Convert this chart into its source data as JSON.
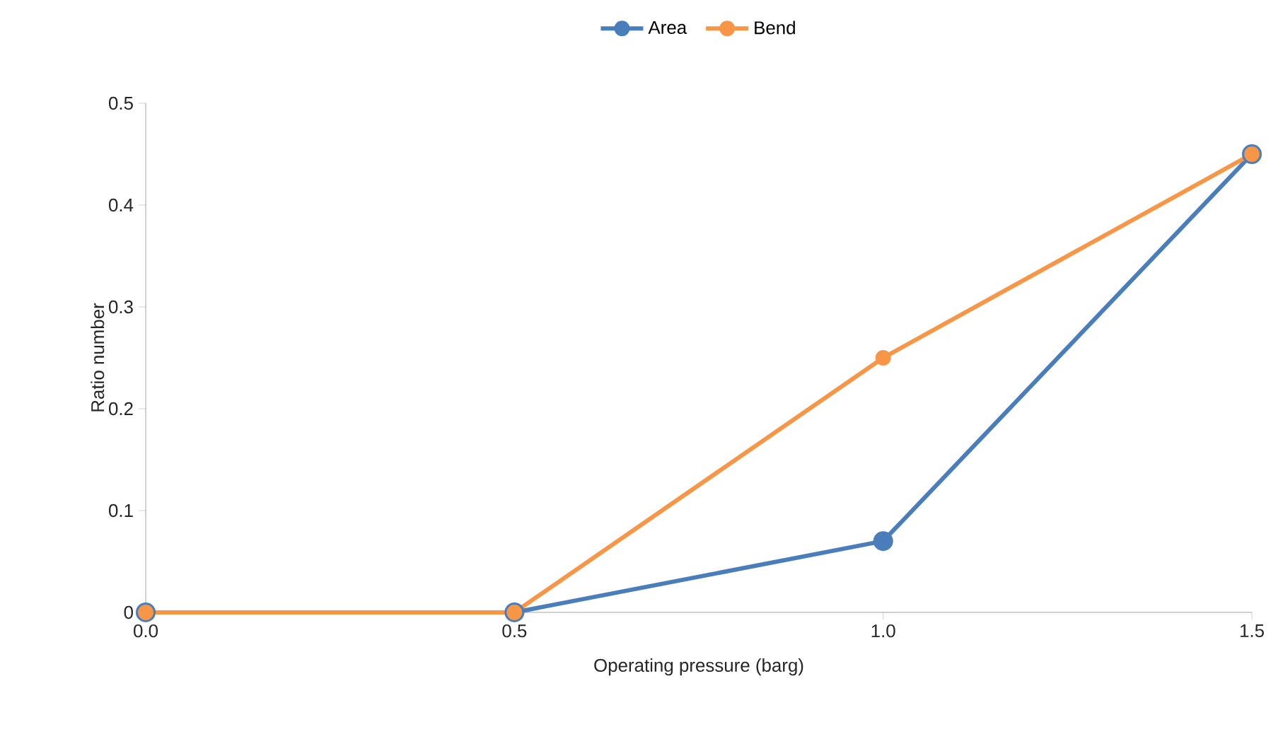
{
  "chart_data": {
    "type": "line",
    "xlabel": "Operating pressure (barg)",
    "ylabel": "Ratio number",
    "x": [
      0,
      0.5,
      1.0,
      1.5
    ],
    "series": [
      {
        "name": "Area",
        "color": "#4a7ebb",
        "values": [
          0,
          0,
          0.07,
          0.45
        ]
      },
      {
        "name": "Bend",
        "color": "#f79646",
        "values": [
          0,
          0,
          0.25,
          0.45
        ]
      }
    ],
    "xlim": [
      0,
      1.5
    ],
    "ylim": [
      0,
      0.5
    ],
    "xticks": [
      {
        "value": 0,
        "label": "0.0"
      },
      {
        "value": 0.5,
        "label": "0.5"
      },
      {
        "value": 1.0,
        "label": "1.0"
      },
      {
        "value": 1.5,
        "label": "1.5"
      }
    ],
    "yticks": [
      0,
      0.1,
      0.2,
      0.3,
      0.4,
      0.5
    ],
    "grid": false,
    "legend": "top",
    "marker": "circle",
    "line_style": "solid"
  }
}
